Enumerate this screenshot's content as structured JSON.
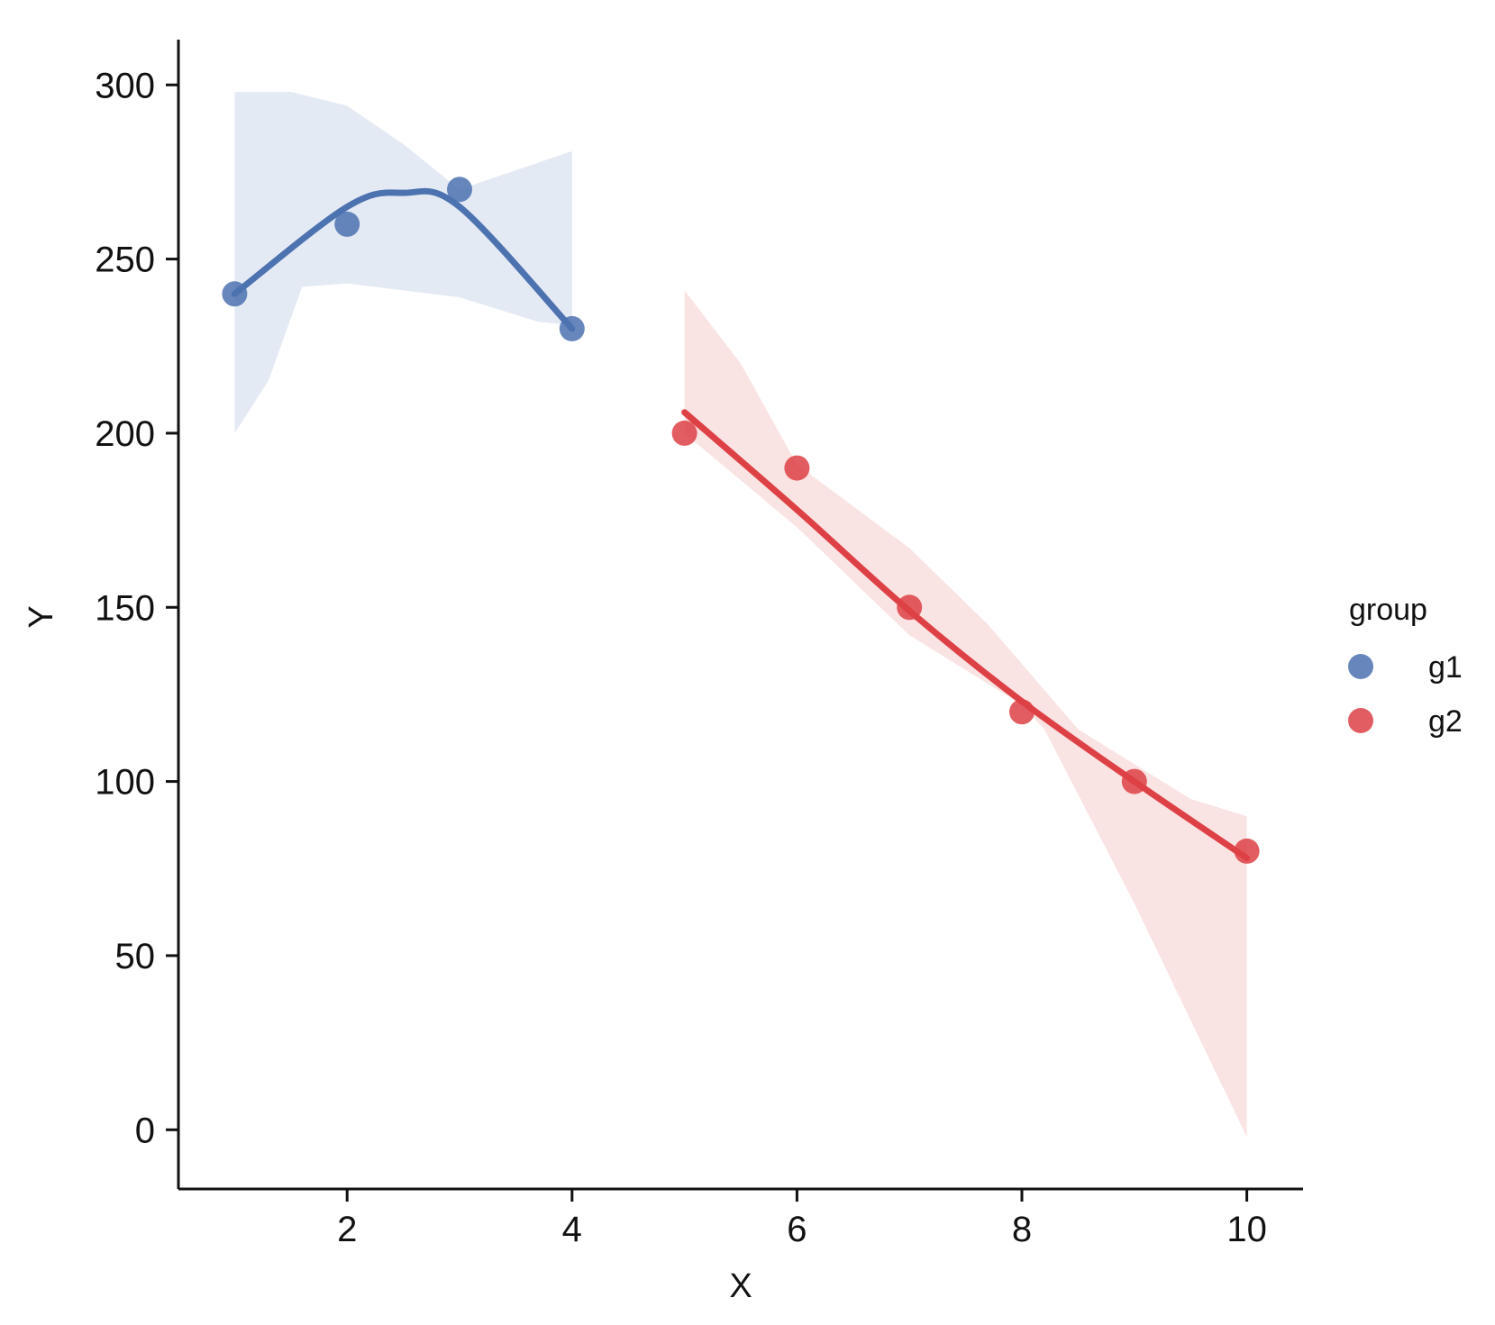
{
  "chart_data": {
    "type": "scatter",
    "xlabel": "X",
    "ylabel": "Y",
    "xlim": [
      0.5,
      10.5
    ],
    "ylim": [
      -17,
      313
    ],
    "xticks": [
      2,
      4,
      6,
      8,
      10
    ],
    "yticks": [
      0,
      50,
      100,
      150,
      200,
      250,
      300
    ],
    "grid": false,
    "legend": {
      "title": "group",
      "placement": "right"
    },
    "series": [
      {
        "name": "g1",
        "color": "#4c72b0",
        "points": [
          [
            1,
            240
          ],
          [
            2,
            260
          ],
          [
            3,
            270
          ],
          [
            4,
            230
          ]
        ],
        "fit": "quadratic",
        "fit_line": [
          [
            1,
            240
          ],
          [
            2,
            265
          ],
          [
            2.5,
            269
          ],
          [
            3,
            265
          ],
          [
            4,
            230
          ]
        ],
        "ci_upper": [
          [
            1,
            298
          ],
          [
            1.5,
            298
          ],
          [
            2,
            294
          ],
          [
            2.5,
            283
          ],
          [
            3,
            270
          ],
          [
            4,
            281
          ]
        ],
        "ci_lower": [
          [
            1,
            200
          ],
          [
            1.3,
            215
          ],
          [
            1.6,
            242
          ],
          [
            2,
            243
          ],
          [
            3,
            239
          ],
          [
            3.7,
            232
          ],
          [
            4,
            231
          ]
        ]
      },
      {
        "name": "g2",
        "color": "#dd4145",
        "points": [
          [
            5,
            200
          ],
          [
            6,
            190
          ],
          [
            7,
            150
          ],
          [
            8,
            120
          ],
          [
            9,
            100
          ],
          [
            10,
            80
          ]
        ],
        "fit": "quadratic",
        "fit_line": [
          [
            5,
            206
          ],
          [
            6,
            178
          ],
          [
            7,
            149
          ],
          [
            8,
            123
          ],
          [
            9,
            100
          ],
          [
            10,
            78
          ]
        ],
        "ci_upper": [
          [
            5,
            241
          ],
          [
            5.5,
            220
          ],
          [
            6,
            191
          ],
          [
            7,
            167
          ],
          [
            7.7,
            145
          ],
          [
            8.5,
            115
          ],
          [
            9.5,
            95
          ],
          [
            10,
            90
          ]
        ],
        "ci_lower": [
          [
            5,
            200
          ],
          [
            6,
            173
          ],
          [
            7,
            142
          ],
          [
            8,
            122
          ],
          [
            8.2,
            115
          ],
          [
            9,
            65
          ],
          [
            10,
            -2
          ]
        ]
      }
    ]
  }
}
